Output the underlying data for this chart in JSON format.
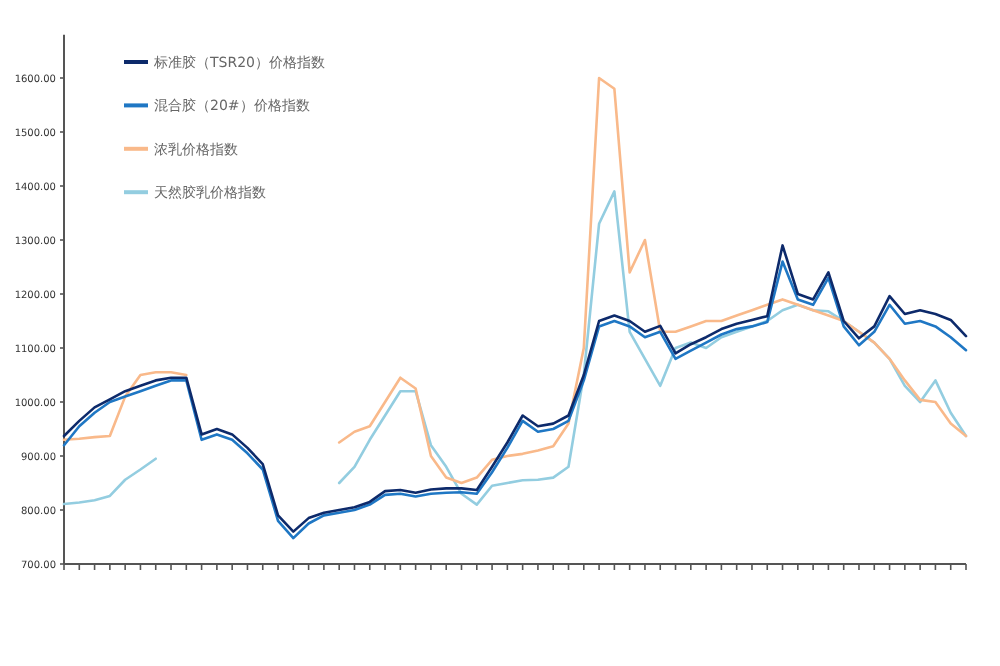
{
  "chart_data": {
    "type": "line",
    "categories": [
      null,
      null,
      null,
      null,
      null,
      null,
      null,
      null,
      null,
      null,
      null,
      null,
      null,
      null,
      null,
      null,
      null,
      null,
      null,
      null,
      null,
      null,
      null,
      null,
      null,
      null,
      null,
      null,
      null,
      null,
      null,
      null,
      null,
      null,
      null,
      null,
      null,
      null,
      null,
      null,
      null,
      null,
      null,
      null,
      null,
      null,
      null,
      null,
      null,
      null,
      null,
      null,
      null,
      null,
      null,
      null,
      null,
      null,
      null,
      null
    ],
    "series": [
      {
        "name": "标准胶（TSR20）价格指数",
        "color": "#0d2a6b",
        "values": [
          937,
          965,
          990,
          1005,
          1020,
          1030,
          1040,
          1045,
          1045,
          940,
          950,
          940,
          915,
          885,
          790,
          760,
          785,
          795,
          800,
          805,
          815,
          835,
          837,
          832,
          838,
          840,
          840,
          837,
          880,
          925,
          975,
          955,
          960,
          975,
          1050,
          1150,
          1160,
          1150,
          1130,
          1141,
          1090,
          1107,
          1120,
          1135,
          1145,
          1152,
          1159,
          1290,
          1200,
          1190,
          1240,
          1150,
          1118,
          1140,
          1196,
          1163,
          1170,
          1163,
          1152,
          1122
        ]
      },
      {
        "name": "混合胶（20#）价格指数",
        "color": "#1f77c4",
        "values": [
          920,
          955,
          980,
          1000,
          1010,
          1020,
          1030,
          1040,
          1040,
          930,
          940,
          930,
          905,
          875,
          780,
          748,
          775,
          790,
          795,
          800,
          810,
          828,
          830,
          825,
          830,
          832,
          833,
          830,
          870,
          915,
          965,
          945,
          950,
          965,
          1040,
          1140,
          1150,
          1140,
          1120,
          1130,
          1080,
          1095,
          1110,
          1125,
          1135,
          1140,
          1148,
          1260,
          1190,
          1180,
          1230,
          1140,
          1105,
          1130,
          1180,
          1145,
          1150,
          1140,
          1120,
          1096
        ]
      },
      {
        "name": "浓乳价格指数",
        "color": "#f9b98a",
        "values": [
          930,
          932,
          935,
          937,
          1010,
          1050,
          1055,
          1055,
          1050,
          null,
          null,
          null,
          null,
          null,
          null,
          null,
          null,
          null,
          925,
          945,
          955,
          1000,
          1045,
          1025,
          900,
          860,
          850,
          860,
          893,
          900,
          904,
          910,
          918,
          960,
          1100,
          1600,
          1580,
          1240,
          1300,
          1130,
          1130,
          1140,
          1150,
          1150,
          1160,
          1170,
          1180,
          1190,
          1180,
          1170,
          1160,
          1150,
          1130,
          1110,
          1080,
          1040,
          1004,
          1000,
          960,
          937
        ]
      },
      {
        "name": "天然胶乳价格指数",
        "color": "#93cde0",
        "values": [
          811,
          814,
          818,
          826,
          856,
          875,
          895,
          null,
          null,
          null,
          null,
          null,
          null,
          null,
          null,
          null,
          null,
          null,
          850,
          880,
          930,
          975,
          1020,
          1020,
          920,
          880,
          830,
          810,
          845,
          850,
          855,
          856,
          860,
          880,
          1050,
          1330,
          1390,
          1130,
          1080,
          1030,
          1100,
          1110,
          1100,
          1120,
          1130,
          1140,
          1150,
          1170,
          1180,
          1170,
          1168,
          1150,
          1130,
          1110,
          1080,
          1030,
          1000,
          1040,
          980,
          937
        ]
      }
    ],
    "ylim": [
      700,
      1680
    ],
    "yticks": [
      {
        "value": 700,
        "label": "700.00"
      },
      {
        "value": 800,
        "label": "800.00"
      },
      {
        "value": 900,
        "label": "900.00"
      },
      {
        "value": 1000,
        "label": "1000.00"
      },
      {
        "value": 1100,
        "label": "1100.00"
      },
      {
        "value": 1200,
        "label": "1200.00"
      },
      {
        "value": 1300,
        "label": "1300.00"
      },
      {
        "value": 1400,
        "label": "1400.00"
      },
      {
        "value": 1500,
        "label": "1500.00"
      },
      {
        "value": 1600,
        "label": "1600.00"
      }
    ],
    "legend": "top left",
    "grid": false
  }
}
